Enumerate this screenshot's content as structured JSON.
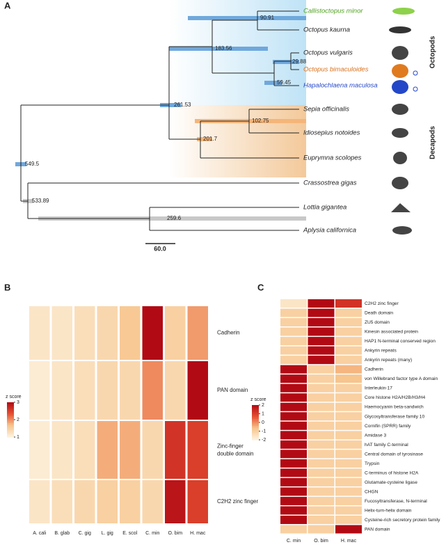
{
  "panel_a": {
    "label": "A",
    "taxa": [
      "Callistoctopus minor",
      "Octopus kaurna",
      "Octopus vulgaris",
      "Octopus bimaculoides",
      "Hapalochlaena maculosa",
      "Sepia officinalis",
      "Idiosepius notoides",
      "Euprymna scolopes",
      "Crassostrea gigas",
      "Lottia gigantea",
      "Aplysia californica"
    ],
    "node_ages": [
      90.91,
      183.56,
      29.88,
      59.45,
      261.53,
      102.75,
      201.7,
      549.5,
      533.89,
      259.6
    ],
    "clades": [
      "Octopods",
      "Decapods"
    ],
    "scale_bar": "60.0"
  },
  "panel_b": {
    "label": "B",
    "columns": [
      "A. cali",
      "B. glab",
      "C. gig",
      "L. gig",
      "E. scol",
      "C. min",
      "O. bim",
      "H. mac"
    ],
    "rows": [
      "Cadherin",
      "PAN domain",
      "Zinc-finger double domain",
      "C2H2 zinc finger"
    ],
    "values": [
      [
        1.2,
        1.2,
        1.3,
        1.4,
        1.6,
        3.0,
        1.5,
        1.9
      ],
      [
        1.1,
        1.2,
        1.3,
        1.4,
        1.4,
        2.0,
        1.4,
        3.0
      ],
      [
        1.1,
        1.2,
        1.3,
        1.8,
        1.8,
        1.4,
        2.6,
        2.5
      ],
      [
        1.2,
        1.3,
        1.4,
        1.5,
        1.5,
        1.4,
        2.9,
        2.5
      ]
    ],
    "legend": {
      "title": "z score",
      "lim": [
        1,
        3
      ],
      "ticks": [
        3,
        2,
        1
      ]
    }
  },
  "panel_c": {
    "label": "C",
    "columns": [
      "C. min",
      "O. bim",
      "H. mac"
    ],
    "rows": [
      "C2H2 zinc finger",
      "Death domain",
      "ZU5 domain",
      "Kinesin associated protein",
      "HAP1 N-terminal conserved region",
      "Ankyrin repeats",
      "Ankyrin repeats (many)",
      "Cadherin",
      "von Willebrand factor type A domain",
      "Interleukin-17",
      "Core histone H2A/H2B/H3/H4",
      "Haemocyanin beta-sandwich",
      "Glycosyltransferase family 10",
      "Cornifin (SPRR) family",
      "Amidase 3",
      "hAT family C-terminal",
      "Central domain of tyrosinase",
      "Trypsin",
      "C-terminus of histone H2A",
      "Glutamate-cysteine ligase",
      "CHGN",
      "Fucosyltransferase, N-terminal",
      "Helix-turn-helix domain",
      "Cysteine-rich secretory protein family",
      "PAN domain"
    ],
    "values": [
      [
        -1.6,
        2,
        1.2
      ],
      [
        -1,
        2,
        -1
      ],
      [
        -1,
        2,
        -1
      ],
      [
        -1,
        2,
        -1
      ],
      [
        -1,
        2,
        -1
      ],
      [
        -1,
        2,
        -1
      ],
      [
        -1,
        2,
        -1
      ],
      [
        2,
        -1,
        -0.5
      ],
      [
        2,
        -1,
        -0.7
      ],
      [
        2,
        -1,
        -1
      ],
      [
        2,
        -1,
        -1
      ],
      [
        2,
        -1,
        -1
      ],
      [
        2,
        -1,
        -1
      ],
      [
        2,
        -1,
        -1
      ],
      [
        2,
        -1,
        -1
      ],
      [
        2,
        -1,
        -1
      ],
      [
        2,
        -1,
        -1
      ],
      [
        2,
        -1,
        -1
      ],
      [
        2,
        -1,
        -1
      ],
      [
        2,
        -1,
        -1
      ],
      [
        2,
        -1,
        -1
      ],
      [
        2,
        -1,
        -1
      ],
      [
        2,
        -1,
        -1
      ],
      [
        2,
        -1,
        -1
      ],
      [
        -1,
        -1,
        2
      ]
    ],
    "legend": {
      "title": "z score",
      "lim": [
        -2,
        2
      ],
      "ticks": [
        2,
        1,
        0,
        -1,
        -2
      ]
    }
  }
}
